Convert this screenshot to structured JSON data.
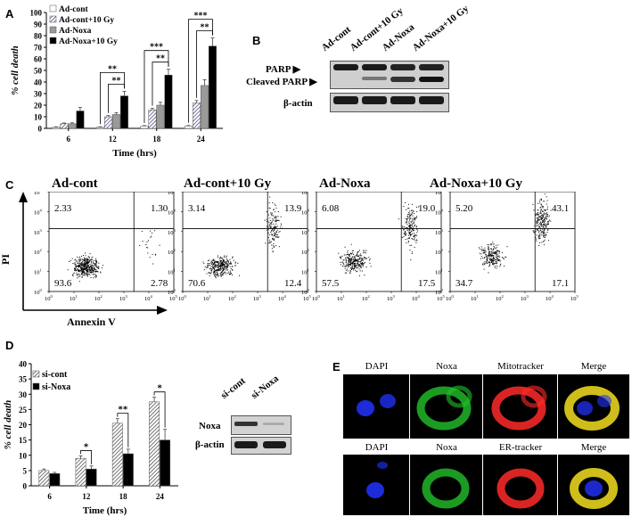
{
  "panels": {
    "a": "A",
    "b": "B",
    "c": "C",
    "d": "D",
    "e": "E"
  },
  "panelA": {
    "chart_data": {
      "type": "bar",
      "categories": [
        "6",
        "12",
        "18",
        "24"
      ],
      "series": [
        {
          "name": "Ad-cont",
          "values": [
            1,
            1,
            2,
            2
          ],
          "errors": [
            0.3,
            0.3,
            0.4,
            0.5
          ],
          "style": "white"
        },
        {
          "name": "Ad-cont+10 Gy",
          "values": [
            4,
            10,
            16,
            22
          ],
          "errors": [
            0.6,
            1,
            1.2,
            2
          ],
          "style": "hatch"
        },
        {
          "name": "Ad-Noxa",
          "values": [
            4,
            12,
            20,
            37
          ],
          "errors": [
            0.8,
            1.5,
            2.5,
            5
          ],
          "style": "gray"
        },
        {
          "name": "Ad-Noxa+10 Gy",
          "values": [
            15,
            28,
            46,
            71
          ],
          "errors": [
            3,
            4,
            5,
            7
          ],
          "style": "black"
        }
      ],
      "xlabel": "Time (hrs)",
      "ylabel": "% cell death",
      "ylim": [
        0,
        100
      ],
      "yticks": [
        0,
        10,
        20,
        30,
        40,
        50,
        60,
        70,
        80,
        90,
        100
      ],
      "significance": [
        {
          "category": "12",
          "pairs": [
            [
              1,
              3
            ],
            [
              0,
              3
            ]
          ],
          "labels": [
            "**",
            "**"
          ]
        },
        {
          "category": "18",
          "pairs": [
            [
              1,
              3
            ],
            [
              0,
              3
            ]
          ],
          "labels": [
            "**",
            "***"
          ]
        },
        {
          "category": "24",
          "pairs": [
            [
              1,
              3
            ],
            [
              0,
              3
            ]
          ],
          "labels": [
            "**",
            "***"
          ]
        }
      ],
      "legend_position": "top-left"
    }
  },
  "panelB": {
    "lanes": [
      "Ad-cont",
      "Ad-cont+10 Gy",
      "Ad-Noxa",
      "Ad-Noxa+10 Gy"
    ],
    "labels": {
      "parp": "PARP",
      "cleaved": "Cleaved PARP",
      "actin": "β-actin"
    }
  },
  "panelC": {
    "titles": [
      "Ad-cont",
      "Ad-cont+10 Gy",
      "Ad-Noxa",
      "Ad-Noxa+10 Gy"
    ],
    "quadrants": [
      {
        "ul": "2.33",
        "ur": "1.30",
        "ll": "93.6",
        "lr": "2.78"
      },
      {
        "ul": "3.14",
        "ur": "13.9",
        "ll": "70.6",
        "lr": "12.4"
      },
      {
        "ul": "6.08",
        "ur": "19.0",
        "ll": "57.5",
        "lr": "17.5"
      },
      {
        "ul": "5.20",
        "ur": "43.1",
        "ll": "34.7",
        "lr": "17.1"
      }
    ],
    "ylabel": "PI",
    "xlabel": "Annexin V",
    "tick_base": "10",
    "tick_exps": [
      "0",
      "1",
      "2",
      "3",
      "4",
      "5"
    ]
  },
  "panelD": {
    "chart_data": {
      "type": "bar",
      "categories": [
        "6",
        "12",
        "18",
        "24"
      ],
      "series": [
        {
          "name": "si-cont",
          "values": [
            5,
            9,
            20.5,
            27.5
          ],
          "errors": [
            0.5,
            0.8,
            1.5,
            1.5
          ],
          "style": "hatch"
        },
        {
          "name": "si-Noxa",
          "values": [
            4,
            5.5,
            10.5,
            15
          ],
          "errors": [
            0.4,
            1,
            1.5,
            3.5
          ],
          "style": "black"
        }
      ],
      "xlabel": "Time (hrs)",
      "ylabel": "% cell death",
      "ylim": [
        0,
        40
      ],
      "yticks": [
        0,
        5,
        10,
        15,
        20,
        25,
        30,
        35,
        40
      ],
      "significance": [
        {
          "category": "12",
          "label": "*"
        },
        {
          "category": "18",
          "label": "**"
        },
        {
          "category": "24",
          "label": "*"
        }
      ],
      "legend_position": "top-left"
    },
    "blot": {
      "lanes": [
        "si-cont",
        "si-Noxa"
      ],
      "labels": {
        "noxa": "Noxa",
        "actin": "β-actin"
      }
    }
  },
  "panelE": {
    "row1": [
      "DAPI",
      "Noxa",
      "Mitotracker",
      "Merge"
    ],
    "row2": [
      "DAPI",
      "Noxa",
      "ER-tracker",
      "Merge"
    ]
  },
  "colors": {
    "hatch_line": "#3a3a78",
    "gray_bar": "#9a9a9a",
    "black_bar": "#000000",
    "dapi": "#2233ff",
    "noxa": "#22c22a",
    "tracker": "#ff2a2a",
    "merge": "#e6d21e"
  }
}
